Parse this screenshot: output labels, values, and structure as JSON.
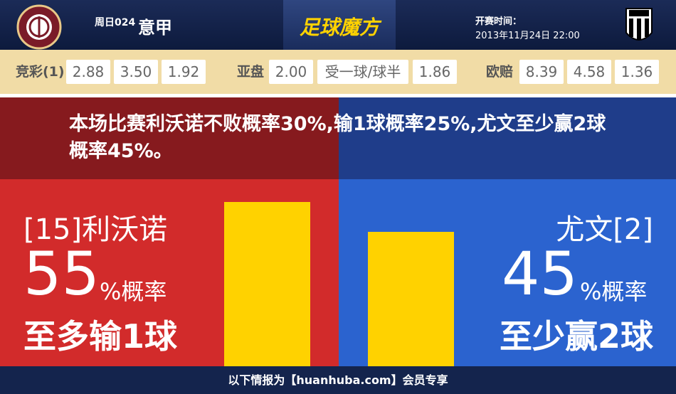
{
  "header": {
    "match_no": "周日024",
    "league": "意甲",
    "logo_text": "足球魔方",
    "kickoff_label": "开赛时间：",
    "kickoff_time": "2013年11月24日 22:00"
  },
  "odds": [
    {
      "label": "竞彩(1)",
      "values": [
        "2.88",
        "3.50",
        "1.92"
      ]
    },
    {
      "label": "亚盘",
      "values": [
        "2.00",
        "受一球/球半",
        "1.86"
      ]
    },
    {
      "label": "欧赔",
      "values": [
        "8.39",
        "4.58",
        "1.36"
      ]
    }
  ],
  "summary": "本场比赛利沃诺不败概率30%,输1球概率25%,尤文至少赢2球概率45%。",
  "home": {
    "name": "[15]利沃诺",
    "probability": 55,
    "unit": "%概率",
    "outcome": "至多输1球"
  },
  "away": {
    "name": "尤文[2]",
    "probability": 45,
    "unit": "%概率",
    "outcome": "至少赢2球"
  },
  "footer": "以下情报为【huanhuba.com】会员专享"
}
